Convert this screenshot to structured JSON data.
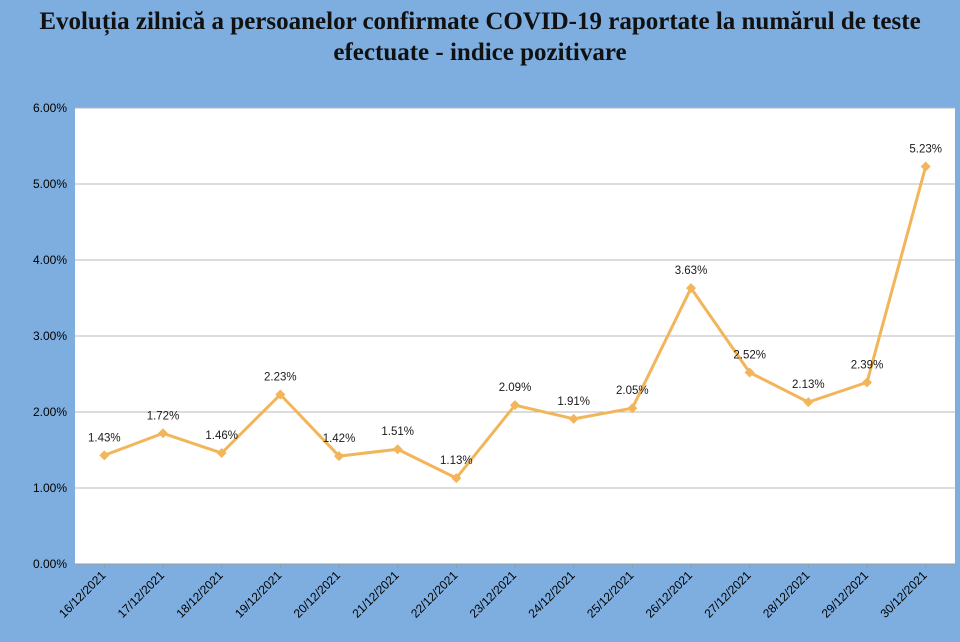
{
  "title_line1": "Evoluția zilnică a persoanelor confirmate COVID-19 raportate la numărul de teste",
  "title_line2": "efectuate - indice pozitivare",
  "chart_data": {
    "type": "line",
    "title": "Evoluția zilnică a persoanelor confirmate COVID-19 raportate la numărul de teste efectuate - indice pozitivare",
    "xlabel": "",
    "ylabel": "",
    "categories": [
      "16/12/2021",
      "17/12/2021",
      "18/12/2021",
      "19/12/2021",
      "20/12/2021",
      "21/12/2021",
      "22/12/2021",
      "23/12/2021",
      "24/12/2021",
      "25/12/2021",
      "26/12/2021",
      "27/12/2021",
      "28/12/2021",
      "29/12/2021",
      "30/12/2021"
    ],
    "series": [
      {
        "values": [
          1.43,
          1.72,
          1.46,
          2.23,
          1.42,
          1.51,
          1.13,
          2.09,
          1.91,
          2.05,
          3.63,
          2.52,
          2.13,
          2.39,
          5.23
        ],
        "labels": [
          "1.43%",
          "1.72%",
          "1.46%",
          "2.23%",
          "1.42%",
          "1.51%",
          "1.13%",
          "2.09%",
          "1.91%",
          "2.05%",
          "3.63%",
          "2.52%",
          "2.13%",
          "2.39%",
          "5.23%"
        ]
      }
    ],
    "ylim": [
      0,
      6
    ],
    "yticks": [
      "0.00%",
      "1.00%",
      "2.00%",
      "3.00%",
      "4.00%",
      "5.00%",
      "6.00%"
    ],
    "grid": true,
    "colors": {
      "line": "#f2b55a",
      "marker": "#f2b55a",
      "background": "#7eaee0",
      "plot_area": "#ffffff",
      "gridline": "#b8b8b8"
    }
  }
}
